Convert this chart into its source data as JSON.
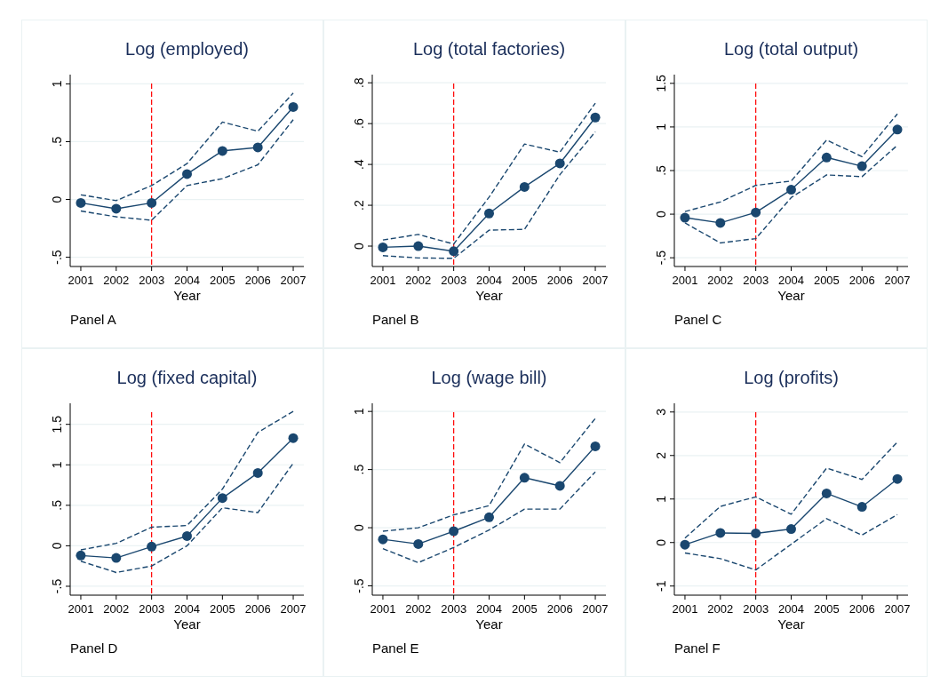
{
  "chart_data": [
    {
      "type": "line",
      "title": "Log (employed)",
      "xlabel": "Year",
      "annotations": [
        "Panel A"
      ],
      "x": [
        2001,
        2002,
        2003,
        2004,
        2005,
        2006,
        2007
      ],
      "xlim": [
        2000.7,
        2007.3
      ],
      "xticks": [
        2001,
        2002,
        2003,
        2004,
        2005,
        2006,
        2007
      ],
      "ylim": [
        -0.58,
        1.08
      ],
      "yticks": [
        {
          "value": -0.5,
          "label": "-.5"
        },
        0,
        {
          "value": 0.5,
          "label": ".5"
        },
        1
      ],
      "grid": "y",
      "marker": "circle",
      "ref_lines": [
        {
          "axis": "x",
          "value": 2003,
          "color": "#ff0000",
          "line_style": "dashed"
        }
      ],
      "series": [
        {
          "color": "#1a476f",
          "values": [
            -0.03,
            -0.08,
            -0.03,
            0.22,
            0.42,
            0.45,
            0.8
          ]
        },
        {
          "color": "#1a476f",
          "line_style": "dashed",
          "marker": "none",
          "values": [
            -0.1,
            -0.15,
            -0.18,
            0.12,
            0.18,
            0.3,
            0.69
          ]
        },
        {
          "color": "#1a476f",
          "line_style": "dashed",
          "marker": "none",
          "values": [
            0.04,
            -0.01,
            0.12,
            0.31,
            0.67,
            0.59,
            0.92
          ]
        }
      ]
    },
    {
      "type": "line",
      "title": "Log (total factories)",
      "xlabel": "Year",
      "annotations": [
        "Panel B"
      ],
      "x": [
        2001,
        2002,
        2003,
        2004,
        2005,
        2006,
        2007
      ],
      "xlim": [
        2000.7,
        2007.3
      ],
      "xticks": [
        2001,
        2002,
        2003,
        2004,
        2005,
        2006,
        2007
      ],
      "ylim": [
        -0.1,
        0.84
      ],
      "yticks": [
        0,
        {
          "value": 0.2,
          "label": ".2"
        },
        {
          "value": 0.4,
          "label": ".4"
        },
        {
          "value": 0.6,
          "label": ".6"
        },
        {
          "value": 0.8,
          "label": ".8"
        }
      ],
      "grid": "y",
      "marker": "circle",
      "ref_lines": [
        {
          "axis": "x",
          "value": 2003,
          "color": "#ff0000",
          "line_style": "dashed"
        }
      ],
      "series": [
        {
          "color": "#1a476f",
          "values": [
            -0.006,
            0,
            -0.025,
            0.16,
            0.29,
            0.405,
            0.63
          ]
        },
        {
          "color": "#1a476f",
          "line_style": "dashed",
          "marker": "none",
          "values": [
            -0.047,
            -0.058,
            -0.06,
            0.078,
            0.082,
            0.35,
            0.56
          ]
        },
        {
          "color": "#1a476f",
          "line_style": "dashed",
          "marker": "none",
          "values": [
            0.03,
            0.057,
            0.01,
            0.24,
            0.5,
            0.46,
            0.7
          ]
        }
      ]
    },
    {
      "type": "line",
      "title": "Log (total output)",
      "xlabel": "Year",
      "annotations": [
        "Panel C"
      ],
      "x": [
        2001,
        2002,
        2003,
        2004,
        2005,
        2006,
        2007
      ],
      "xlim": [
        2000.7,
        2007.3
      ],
      "xticks": [
        2001,
        2002,
        2003,
        2004,
        2005,
        2006,
        2007
      ],
      "ylim": [
        -0.6,
        1.6
      ],
      "yticks": [
        {
          "value": -0.5,
          "label": "-.5"
        },
        0,
        {
          "value": 0.5,
          "label": ".5"
        },
        1,
        1.5
      ],
      "grid": "y",
      "marker": "circle",
      "ref_lines": [
        {
          "axis": "x",
          "value": 2003,
          "color": "#ff0000",
          "line_style": "dashed"
        }
      ],
      "series": [
        {
          "color": "#1a476f",
          "values": [
            -0.04,
            -0.1,
            0.02,
            0.28,
            0.65,
            0.55,
            0.97
          ]
        },
        {
          "color": "#1a476f",
          "line_style": "dashed",
          "marker": "none",
          "values": [
            -0.1,
            -0.33,
            -0.28,
            0.19,
            0.45,
            0.43,
            0.79
          ]
        },
        {
          "color": "#1a476f",
          "line_style": "dashed",
          "marker": "none",
          "values": [
            0.03,
            0.14,
            0.33,
            0.38,
            0.85,
            0.66,
            1.15
          ]
        }
      ]
    },
    {
      "type": "line",
      "title": "Log (fixed capital)",
      "xlabel": "Year",
      "annotations": [
        "Panel D"
      ],
      "x": [
        2001,
        2002,
        2003,
        2004,
        2005,
        2006,
        2007
      ],
      "xlim": [
        2000.7,
        2007.3
      ],
      "xticks": [
        2001,
        2002,
        2003,
        2004,
        2005,
        2006,
        2007
      ],
      "ylim": [
        -0.61,
        1.76
      ],
      "yticks": [
        {
          "value": -0.5,
          "label": "-.5"
        },
        0,
        {
          "value": 0.5,
          "label": ".5"
        },
        1,
        1.5
      ],
      "grid": "y",
      "marker": "circle",
      "ref_lines": [
        {
          "axis": "x",
          "value": 2003,
          "color": "#ff0000",
          "line_style": "dashed"
        }
      ],
      "series": [
        {
          "color": "#1a476f",
          "values": [
            -0.12,
            -0.15,
            -0.01,
            0.12,
            0.59,
            0.9,
            1.33
          ]
        },
        {
          "color": "#1a476f",
          "line_style": "dashed",
          "marker": "none",
          "values": [
            -0.19,
            -0.33,
            -0.25,
            0,
            0.47,
            0.41,
            1.02
          ]
        },
        {
          "color": "#1a476f",
          "line_style": "dashed",
          "marker": "none",
          "values": [
            -0.05,
            0.03,
            0.23,
            0.25,
            0.7,
            1.4,
            1.66
          ]
        }
      ]
    },
    {
      "type": "line",
      "title": "Log (wage bill)",
      "xlabel": "Year",
      "annotations": [
        "Panel E"
      ],
      "x": [
        2001,
        2002,
        2003,
        2004,
        2005,
        2006,
        2007
      ],
      "xlim": [
        2000.7,
        2007.3
      ],
      "xticks": [
        2001,
        2002,
        2003,
        2004,
        2005,
        2006,
        2007
      ],
      "ylim": [
        -0.58,
        1.07
      ],
      "yticks": [
        {
          "value": -0.5,
          "label": "-.5"
        },
        0,
        {
          "value": 0.5,
          "label": ".5"
        },
        1
      ],
      "grid": "y",
      "marker": "circle",
      "ref_lines": [
        {
          "axis": "x",
          "value": 2003,
          "color": "#ff0000",
          "line_style": "dashed"
        }
      ],
      "series": [
        {
          "color": "#1a476f",
          "values": [
            -0.1,
            -0.14,
            -0.03,
            0.09,
            0.43,
            0.36,
            0.7
          ]
        },
        {
          "color": "#1a476f",
          "line_style": "dashed",
          "marker": "none",
          "values": [
            -0.18,
            -0.3,
            -0.17,
            -0.02,
            0.16,
            0.16,
            0.48
          ]
        },
        {
          "color": "#1a476f",
          "line_style": "dashed",
          "marker": "none",
          "values": [
            -0.03,
            0,
            0.11,
            0.19,
            0.72,
            0.56,
            0.94
          ]
        }
      ]
    },
    {
      "type": "line",
      "title": "Log (profits)",
      "xlabel": "Year",
      "annotations": [
        "Panel F"
      ],
      "x": [
        2001,
        2002,
        2003,
        2004,
        2005,
        2006,
        2007
      ],
      "xlim": [
        2000.7,
        2007.3
      ],
      "xticks": [
        2001,
        2002,
        2003,
        2004,
        2005,
        2006,
        2007
      ],
      "ylim": [
        -1.21,
        3.2
      ],
      "yticks": [
        -1,
        0,
        1,
        2,
        3
      ],
      "grid": "y",
      "marker": "circle",
      "ref_lines": [
        {
          "axis": "x",
          "value": 2003,
          "color": "#ff0000",
          "line_style": "dashed"
        }
      ],
      "series": [
        {
          "color": "#1a476f",
          "values": [
            -0.05,
            0.22,
            0.21,
            0.31,
            1.13,
            0.82,
            1.46
          ]
        },
        {
          "color": "#1a476f",
          "line_style": "dashed",
          "marker": "none",
          "values": [
            -0.24,
            -0.37,
            -0.63,
            -0.04,
            0.55,
            0.17,
            0.64
          ]
        },
        {
          "color": "#1a476f",
          "line_style": "dashed",
          "marker": "none",
          "values": [
            0.1,
            0.83,
            1.05,
            0.65,
            1.71,
            1.45,
            2.31
          ]
        }
      ]
    }
  ]
}
